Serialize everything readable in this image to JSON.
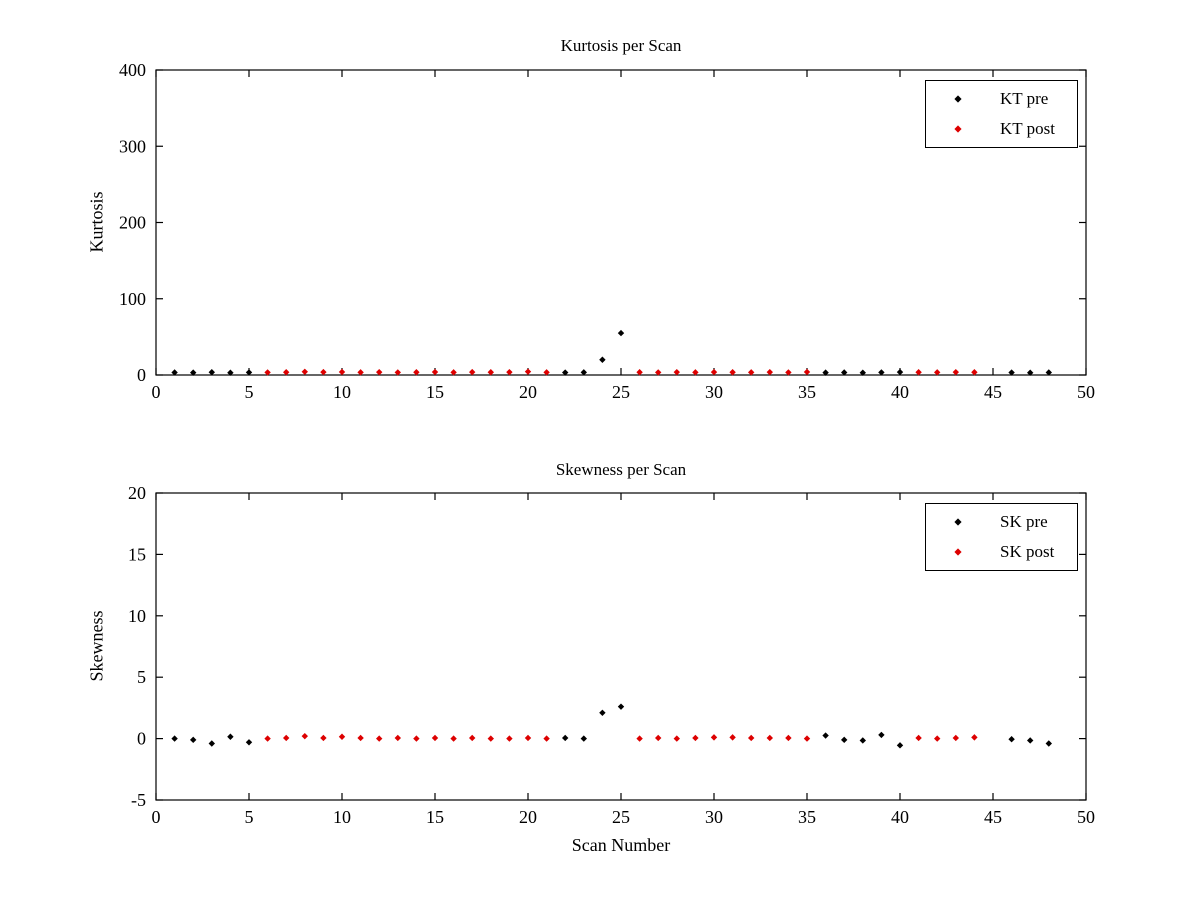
{
  "figure": {
    "background": "#ffffff",
    "axis_color": "#000000"
  },
  "chart_data": [
    {
      "type": "scatter",
      "title": "Kurtosis per Scan",
      "xlabel": "",
      "ylabel": "Kurtosis",
      "xlim": [
        0,
        50
      ],
      "ylim": [
        0,
        400
      ],
      "xticks": [
        0,
        5,
        10,
        15,
        20,
        25,
        30,
        35,
        40,
        45,
        50
      ],
      "yticks": [
        0,
        100,
        200,
        300,
        400
      ],
      "grid": false,
      "legend_position": "upper-right",
      "series": [
        {
          "name": "KT pre",
          "color": "#000000",
          "marker": "diamond",
          "points": [
            [
              1,
              3.3
            ],
            [
              2,
              3.1
            ],
            [
              3,
              3.6
            ],
            [
              4,
              3.0
            ],
            [
              5,
              3.4
            ],
            [
              22,
              3.2
            ],
            [
              23,
              3.5
            ],
            [
              24,
              20
            ],
            [
              25,
              55
            ],
            [
              36,
              3.1
            ],
            [
              37,
              3.3
            ],
            [
              38,
              3.0
            ],
            [
              39,
              3.4
            ],
            [
              40,
              3.8
            ],
            [
              46,
              3.2
            ],
            [
              47,
              3.0
            ],
            [
              48,
              3.3
            ]
          ]
        },
        {
          "name": "KT post",
          "color": "#dd0000",
          "marker": "diamond",
          "points": [
            [
              6,
              3.4
            ],
            [
              7,
              3.6
            ],
            [
              8,
              4.2
            ],
            [
              9,
              3.8
            ],
            [
              10,
              4.0
            ],
            [
              11,
              3.5
            ],
            [
              12,
              3.7
            ],
            [
              13,
              3.4
            ],
            [
              14,
              3.6
            ],
            [
              15,
              3.9
            ],
            [
              16,
              3.5
            ],
            [
              17,
              3.8
            ],
            [
              18,
              3.6
            ],
            [
              19,
              3.7
            ],
            [
              20,
              4.4
            ],
            [
              21,
              3.5
            ],
            [
              26,
              3.6
            ],
            [
              27,
              3.4
            ],
            [
              28,
              3.7
            ],
            [
              29,
              3.5
            ],
            [
              30,
              3.8
            ],
            [
              31,
              3.6
            ],
            [
              32,
              3.5
            ],
            [
              33,
              3.7
            ],
            [
              34,
              3.4
            ],
            [
              35,
              4.0
            ],
            [
              41,
              3.6
            ],
            [
              42,
              3.5
            ],
            [
              43,
              3.7
            ],
            [
              44,
              3.6
            ]
          ]
        }
      ]
    },
    {
      "type": "scatter",
      "title": "Skewness per Scan",
      "xlabel": "Scan Number",
      "ylabel": "Skewness",
      "xlim": [
        0,
        50
      ],
      "ylim": [
        -5,
        20
      ],
      "xticks": [
        0,
        5,
        10,
        15,
        20,
        25,
        30,
        35,
        40,
        45,
        50
      ],
      "yticks": [
        -5,
        0,
        5,
        10,
        15,
        20
      ],
      "grid": false,
      "legend_position": "upper-right",
      "series": [
        {
          "name": "SK pre",
          "color": "#000000",
          "marker": "diamond",
          "points": [
            [
              1,
              0.0
            ],
            [
              2,
              -0.1
            ],
            [
              3,
              -0.4
            ],
            [
              4,
              0.15
            ],
            [
              5,
              -0.3
            ],
            [
              22,
              0.05
            ],
            [
              23,
              0.0
            ],
            [
              24,
              2.1
            ],
            [
              25,
              2.6
            ],
            [
              36,
              0.25
            ],
            [
              37,
              -0.1
            ],
            [
              38,
              -0.15
            ],
            [
              39,
              0.3
            ],
            [
              40,
              -0.55
            ],
            [
              46,
              -0.05
            ],
            [
              47,
              -0.15
            ],
            [
              48,
              -0.4
            ]
          ]
        },
        {
          "name": "SK post",
          "color": "#dd0000",
          "marker": "diamond",
          "points": [
            [
              6,
              0.0
            ],
            [
              7,
              0.05
            ],
            [
              8,
              0.2
            ],
            [
              9,
              0.05
            ],
            [
              10,
              0.15
            ],
            [
              11,
              0.05
            ],
            [
              12,
              0.0
            ],
            [
              13,
              0.05
            ],
            [
              14,
              0.0
            ],
            [
              15,
              0.05
            ],
            [
              16,
              0.0
            ],
            [
              17,
              0.05
            ],
            [
              18,
              0.0
            ],
            [
              19,
              0.0
            ],
            [
              20,
              0.05
            ],
            [
              21,
              0.0
            ],
            [
              26,
              0.0
            ],
            [
              27,
              0.05
            ],
            [
              28,
              0.0
            ],
            [
              29,
              0.05
            ],
            [
              30,
              0.1
            ],
            [
              31,
              0.1
            ],
            [
              32,
              0.05
            ],
            [
              33,
              0.05
            ],
            [
              34,
              0.05
            ],
            [
              35,
              0.0
            ],
            [
              41,
              0.05
            ],
            [
              42,
              0.0
            ],
            [
              43,
              0.05
            ],
            [
              44,
              0.1
            ]
          ]
        }
      ]
    }
  ]
}
